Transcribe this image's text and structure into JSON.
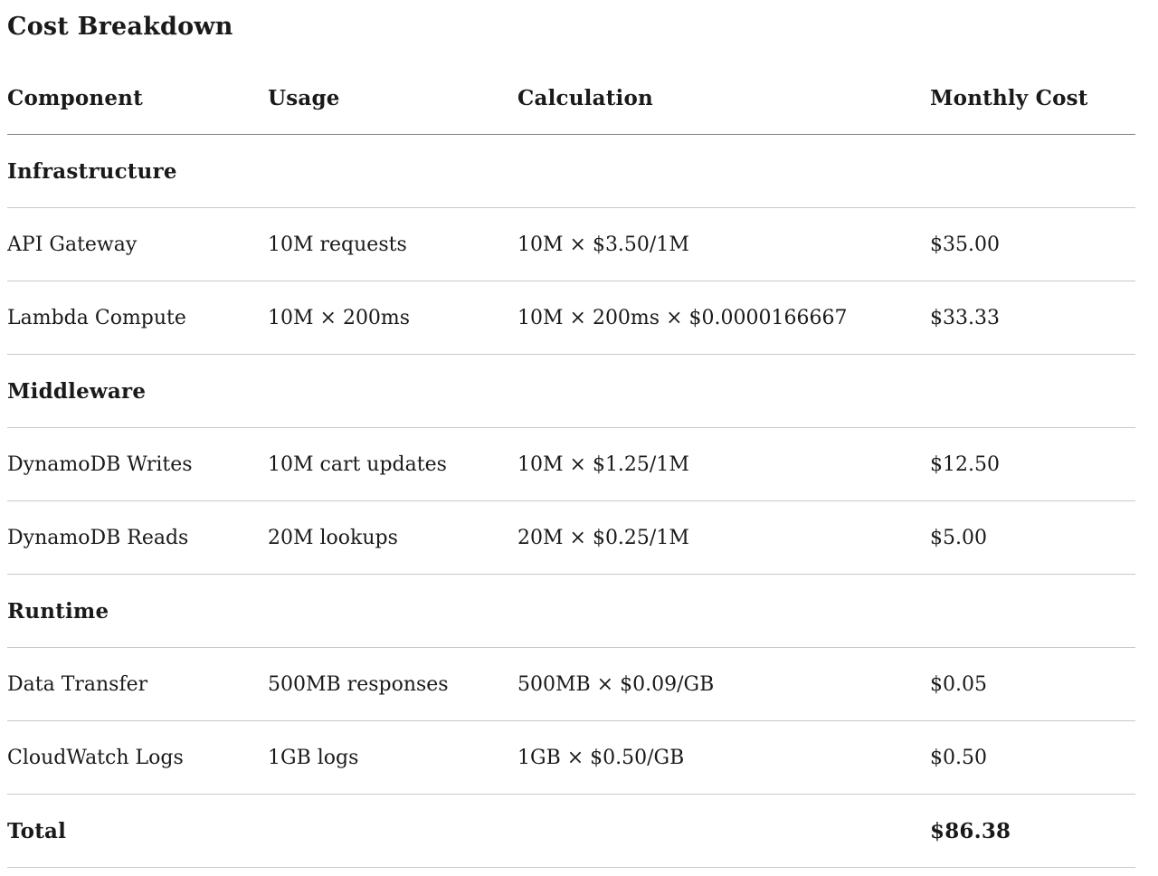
{
  "title": "Cost Breakdown",
  "colors": {
    "text": "#1a1a1a",
    "header_rule": "#7f7f7f",
    "row_rule": "#c9c9c9",
    "background": "#ffffff"
  },
  "table": {
    "headers": {
      "component": "Component",
      "usage": "Usage",
      "calculation": "Calculation",
      "monthly_cost": "Monthly Cost"
    },
    "rows": [
      {
        "type": "section",
        "label": "Infrastructure"
      },
      {
        "type": "data",
        "component": "API Gateway",
        "usage": "10M requests",
        "calculation": "10M × $3.50/1M",
        "monthly_cost": "$35.00"
      },
      {
        "type": "data",
        "component": "Lambda Compute",
        "usage": "10M × 200ms",
        "calculation": "10M × 200ms × $0.0000166667",
        "monthly_cost": "$33.33"
      },
      {
        "type": "section",
        "label": "Middleware"
      },
      {
        "type": "data",
        "component": "DynamoDB Writes",
        "usage": "10M cart updates",
        "calculation": "10M × $1.25/1M",
        "monthly_cost": "$12.50"
      },
      {
        "type": "data",
        "component": "DynamoDB Reads",
        "usage": "20M lookups",
        "calculation": "20M × $0.25/1M",
        "monthly_cost": "$5.00"
      },
      {
        "type": "section",
        "label": "Runtime"
      },
      {
        "type": "data",
        "component": "Data Transfer",
        "usage": "500MB responses",
        "calculation": "500MB × $0.09/GB",
        "monthly_cost": "$0.05"
      },
      {
        "type": "data",
        "component": "CloudWatch Logs",
        "usage": "1GB logs",
        "calculation": "1GB × $0.50/GB",
        "monthly_cost": "$0.50"
      },
      {
        "type": "total",
        "label": "Total",
        "monthly_cost": "$86.38"
      }
    ]
  }
}
